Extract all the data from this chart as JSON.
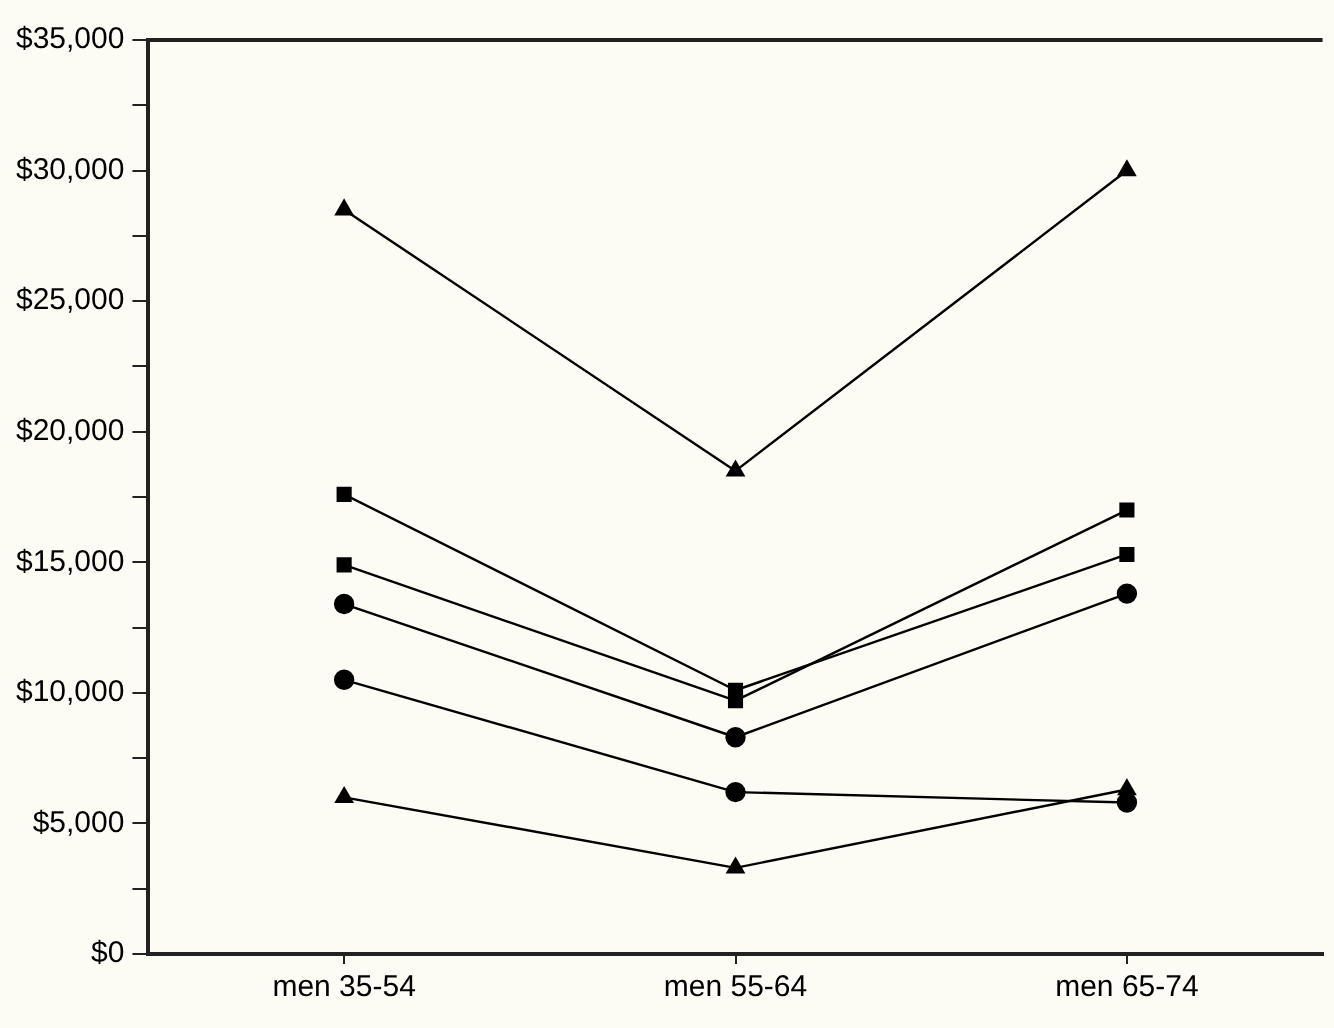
{
  "chart_data": {
    "type": "line",
    "categories": [
      "men 35-54",
      "men 55-64",
      "men 65-74"
    ],
    "series": [
      {
        "color": "#000000",
        "marker": "triangle",
        "values": [
          28500,
          18500,
          30000
        ]
      },
      {
        "color": "#000000",
        "marker": "square",
        "values": [
          17600,
          10100,
          15300
        ]
      },
      {
        "color": "#000000",
        "marker": "square",
        "values": [
          14900,
          9700,
          17000
        ]
      },
      {
        "color": "#000000",
        "marker": "circle",
        "values": [
          13400,
          8300,
          13800
        ]
      },
      {
        "color": "#000000",
        "marker": "circle",
        "values": [
          10500,
          6200,
          5800
        ]
      },
      {
        "color": "#000000",
        "marker": "triangle",
        "values": [
          6000,
          3300,
          6300
        ]
      }
    ],
    "ylim": [
      0,
      35000
    ],
    "yticks": [
      {
        "value": 0,
        "label": "$0"
      },
      {
        "value": 2500,
        "label": null
      },
      {
        "value": 5000,
        "label": "$5,000"
      },
      {
        "value": 7500,
        "label": null
      },
      {
        "value": 10000,
        "label": "$10,000"
      },
      {
        "value": 12500,
        "label": null
      },
      {
        "value": 15000,
        "label": "$15,000"
      },
      {
        "value": 17500,
        "label": null
      },
      {
        "value": 20000,
        "label": "$20,000"
      },
      {
        "value": 22500,
        "label": null
      },
      {
        "value": 25000,
        "label": "$25,000"
      },
      {
        "value": 27500,
        "label": null
      },
      {
        "value": 30000,
        "label": "$30,000"
      },
      {
        "value": 32500,
        "label": null
      },
      {
        "value": 35000,
        "label": "$35,000"
      }
    ],
    "grid": false,
    "legend": false,
    "line_style": "solid"
  }
}
